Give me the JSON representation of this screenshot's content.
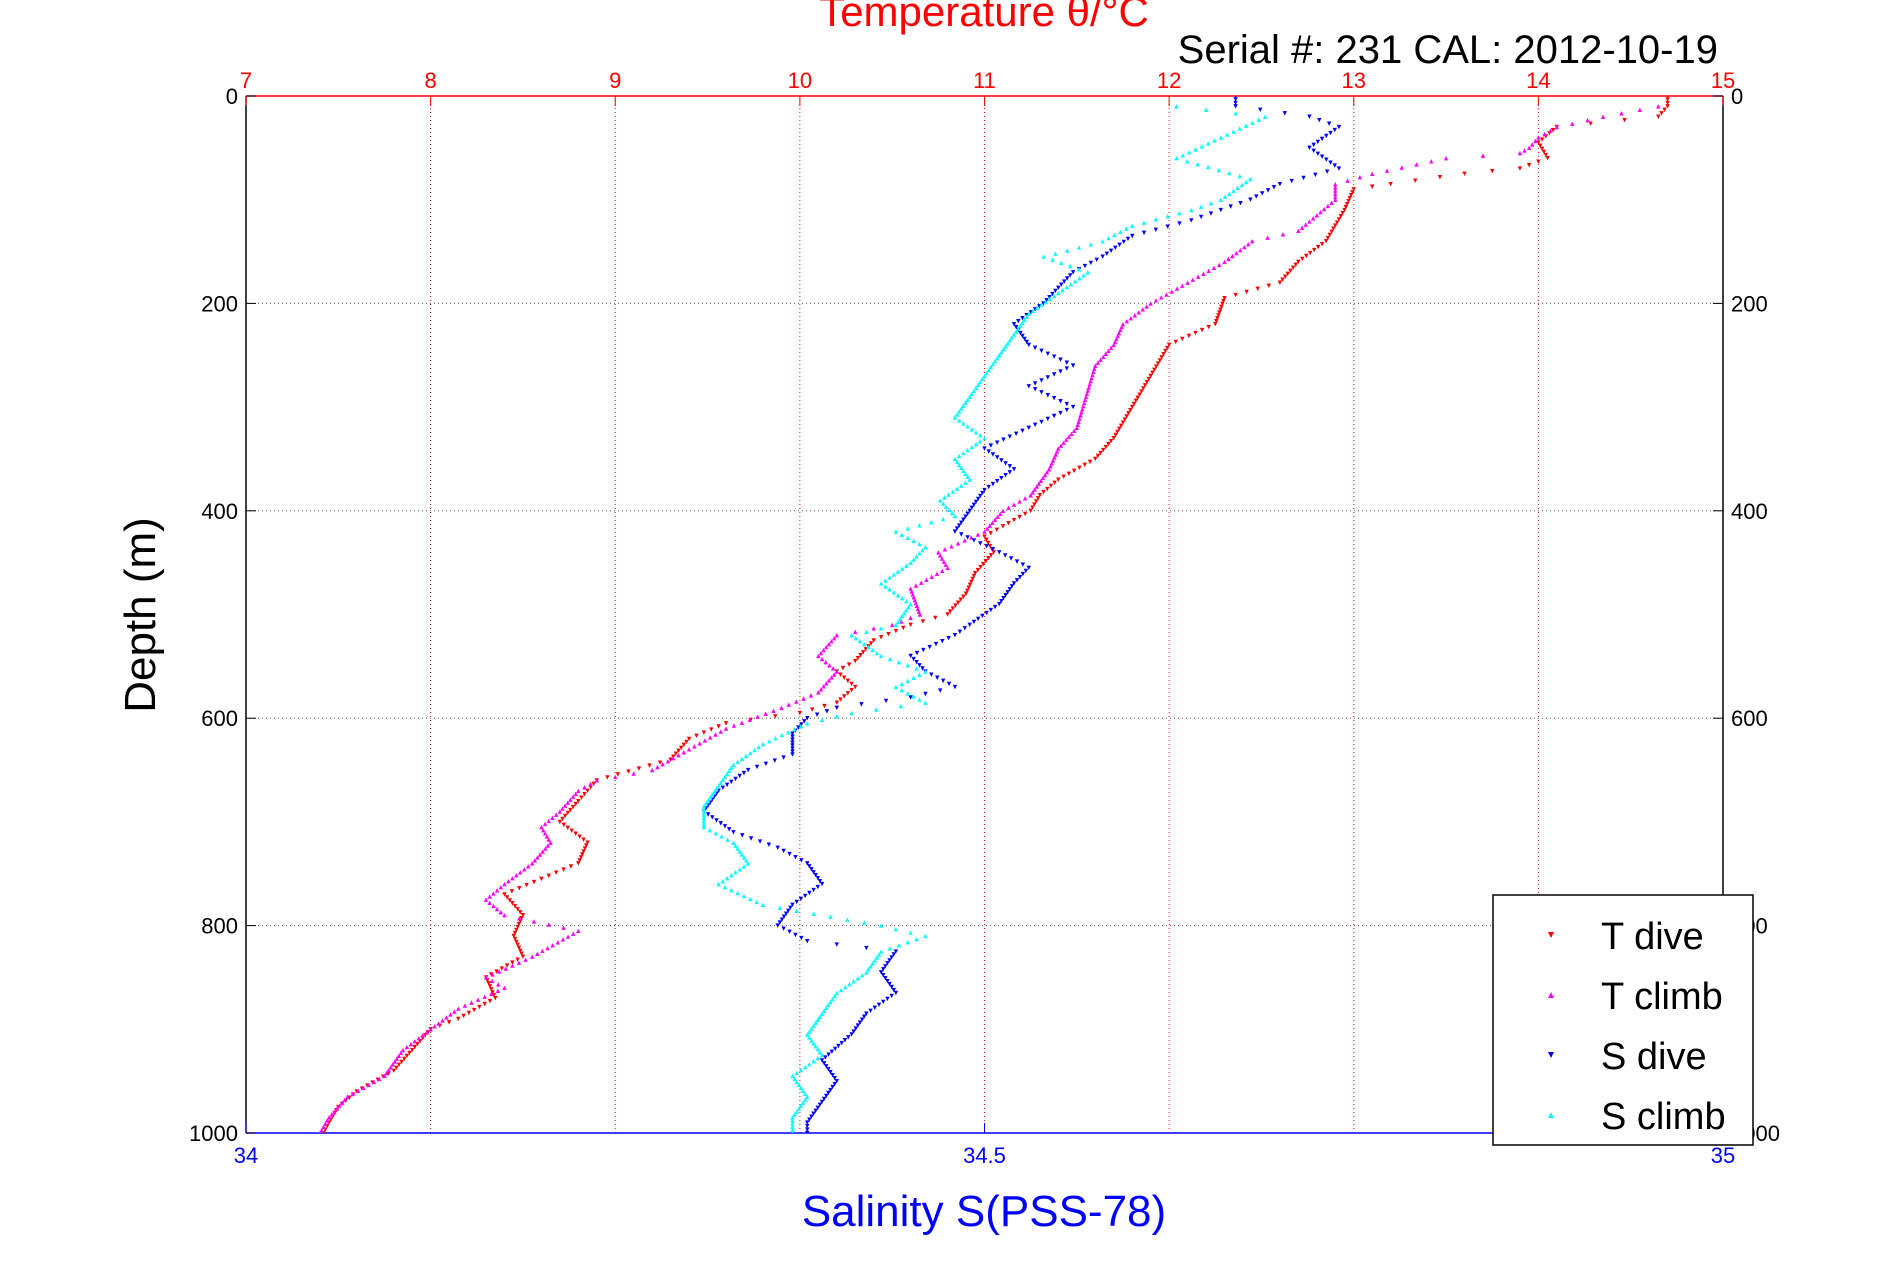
{
  "chart_data": {
    "type": "scatter",
    "title": "Temperature θ/°C",
    "subtitle": "Serial #: 231  CAL: 2012-10-19",
    "ylabel": "Depth (m)",
    "xlabel_bottom": "Salinity S(PSS-78)",
    "xlabel_top": "Temperature θ/°C",
    "ylim": [
      0,
      1000
    ],
    "y_reversed": true,
    "yticks": [
      0,
      200,
      400,
      600,
      800,
      1000
    ],
    "x_top": {
      "min": 7,
      "max": 15,
      "ticks": [
        7,
        8,
        9,
        10,
        11,
        12,
        13,
        14,
        15
      ],
      "color": "#ff0000"
    },
    "x_bottom": {
      "min": 34,
      "max": 35,
      "ticks": [
        34,
        34.5,
        35
      ],
      "color": "#0000ff"
    },
    "grid": true,
    "legend_position": "bottom-right",
    "series": [
      {
        "name": "T dive",
        "axis": "top",
        "marker": "down-triangle",
        "color": "#ff0000",
        "points": [
          [
            14.7,
            0
          ],
          [
            14.7,
            10
          ],
          [
            14.65,
            20
          ],
          [
            14.1,
            30
          ],
          [
            14.0,
            45
          ],
          [
            14.05,
            60
          ],
          [
            13.9,
            70
          ],
          [
            13.6,
            75
          ],
          [
            13.2,
            85
          ],
          [
            13.0,
            90
          ],
          [
            12.95,
            110
          ],
          [
            12.85,
            140
          ],
          [
            12.7,
            160
          ],
          [
            12.6,
            180
          ],
          [
            12.3,
            195
          ],
          [
            12.25,
            220
          ],
          [
            12.0,
            240
          ],
          [
            11.9,
            270
          ],
          [
            11.8,
            300
          ],
          [
            11.7,
            330
          ],
          [
            11.6,
            350
          ],
          [
            11.4,
            370
          ],
          [
            11.3,
            385
          ],
          [
            11.25,
            400
          ],
          [
            11.1,
            415
          ],
          [
            11.0,
            425
          ],
          [
            11.05,
            440
          ],
          [
            10.95,
            460
          ],
          [
            10.9,
            480
          ],
          [
            10.8,
            500
          ],
          [
            10.6,
            510
          ],
          [
            10.4,
            525
          ],
          [
            10.3,
            545
          ],
          [
            10.2,
            555
          ],
          [
            10.3,
            570
          ],
          [
            10.2,
            585
          ],
          [
            10.0,
            595
          ],
          [
            9.6,
            605
          ],
          [
            9.4,
            620
          ],
          [
            9.3,
            640
          ],
          [
            8.9,
            660
          ],
          [
            8.85,
            670
          ],
          [
            8.8,
            680
          ],
          [
            8.7,
            700
          ],
          [
            8.85,
            720
          ],
          [
            8.8,
            740
          ],
          [
            8.6,
            755
          ],
          [
            8.4,
            770
          ],
          [
            8.5,
            790
          ],
          [
            8.45,
            810
          ],
          [
            8.5,
            830
          ],
          [
            8.3,
            850
          ],
          [
            8.35,
            870
          ],
          [
            8.15,
            890
          ],
          [
            8.0,
            900
          ],
          [
            7.9,
            920
          ],
          [
            7.8,
            940
          ],
          [
            7.6,
            960
          ],
          [
            7.5,
            975
          ],
          [
            7.45,
            990
          ],
          [
            7.42,
            1000
          ]
        ]
      },
      {
        "name": "T climb",
        "axis": "top",
        "marker": "up-triangle",
        "color": "#ff00ff",
        "points": [
          [
            14.65,
            10
          ],
          [
            14.35,
            20
          ],
          [
            14.1,
            30
          ],
          [
            14.0,
            40
          ],
          [
            13.95,
            50
          ],
          [
            13.9,
            55
          ],
          [
            13.5,
            60
          ],
          [
            13.1,
            75
          ],
          [
            12.9,
            85
          ],
          [
            12.9,
            100
          ],
          [
            12.8,
            115
          ],
          [
            12.7,
            130
          ],
          [
            12.45,
            140
          ],
          [
            12.3,
            160
          ],
          [
            12.1,
            180
          ],
          [
            11.9,
            200
          ],
          [
            11.75,
            220
          ],
          [
            11.7,
            240
          ],
          [
            11.6,
            260
          ],
          [
            11.55,
            290
          ],
          [
            11.5,
            320
          ],
          [
            11.4,
            340
          ],
          [
            11.35,
            360
          ],
          [
            11.25,
            385
          ],
          [
            11.1,
            400
          ],
          [
            11.0,
            420
          ],
          [
            10.75,
            440
          ],
          [
            10.8,
            455
          ],
          [
            10.6,
            475
          ],
          [
            10.65,
            500
          ],
          [
            10.5,
            510
          ],
          [
            10.2,
            520
          ],
          [
            10.1,
            540
          ],
          [
            10.2,
            555
          ],
          [
            10.1,
            575
          ],
          [
            9.9,
            590
          ],
          [
            9.6,
            610
          ],
          [
            9.4,
            630
          ],
          [
            9.2,
            650
          ],
          [
            8.9,
            660
          ],
          [
            8.8,
            670
          ],
          [
            8.7,
            690
          ],
          [
            8.6,
            705
          ],
          [
            8.65,
            720
          ],
          [
            8.55,
            740
          ],
          [
            8.4,
            760
          ],
          [
            8.3,
            775
          ],
          [
            8.4,
            790
          ],
          [
            8.8,
            805
          ],
          [
            8.55,
            830
          ],
          [
            8.3,
            850
          ],
          [
            8.4,
            860
          ],
          [
            8.15,
            880
          ],
          [
            8.0,
            900
          ],
          [
            7.85,
            920
          ],
          [
            7.75,
            945
          ],
          [
            7.55,
            965
          ],
          [
            7.45,
            985
          ],
          [
            7.4,
            1000
          ]
        ]
      },
      {
        "name": "S dive",
        "axis": "bottom",
        "marker": "down-triangle",
        "color": "#0000ff",
        "points": [
          [
            34.67,
            0
          ],
          [
            34.67,
            10
          ],
          [
            34.72,
            20
          ],
          [
            34.74,
            30
          ],
          [
            34.72,
            50
          ],
          [
            34.74,
            70
          ],
          [
            34.7,
            85
          ],
          [
            34.68,
            100
          ],
          [
            34.66,
            110
          ],
          [
            34.64,
            120
          ],
          [
            34.6,
            135
          ],
          [
            34.58,
            155
          ],
          [
            34.56,
            170
          ],
          [
            34.55,
            185
          ],
          [
            34.54,
            200
          ],
          [
            34.52,
            220
          ],
          [
            34.53,
            240
          ],
          [
            34.56,
            260
          ],
          [
            34.53,
            280
          ],
          [
            34.56,
            300
          ],
          [
            34.53,
            320
          ],
          [
            34.5,
            340
          ],
          [
            34.52,
            360
          ],
          [
            34.5,
            380
          ],
          [
            34.49,
            400
          ],
          [
            34.48,
            420
          ],
          [
            34.51,
            440
          ],
          [
            34.53,
            455
          ],
          [
            34.52,
            470
          ],
          [
            34.51,
            490
          ],
          [
            34.49,
            510
          ],
          [
            34.48,
            520
          ],
          [
            34.45,
            540
          ],
          [
            34.46,
            555
          ],
          [
            34.48,
            570
          ],
          [
            34.45,
            580
          ],
          [
            34.4,
            590
          ],
          [
            34.38,
            600
          ],
          [
            34.37,
            615
          ],
          [
            34.37,
            635
          ],
          [
            34.34,
            650
          ],
          [
            34.32,
            670
          ],
          [
            34.31,
            690
          ],
          [
            34.33,
            710
          ],
          [
            34.36,
            725
          ],
          [
            34.38,
            740
          ],
          [
            34.39,
            760
          ],
          [
            34.37,
            780
          ],
          [
            34.36,
            800
          ],
          [
            34.38,
            815
          ],
          [
            34.44,
            825
          ],
          [
            34.43,
            845
          ],
          [
            34.44,
            865
          ],
          [
            34.42,
            885
          ],
          [
            34.41,
            905
          ],
          [
            34.39,
            930
          ],
          [
            34.4,
            950
          ],
          [
            34.39,
            970
          ],
          [
            34.38,
            990
          ],
          [
            34.38,
            1000
          ]
        ]
      },
      {
        "name": "S climb",
        "axis": "bottom",
        "marker": "up-triangle",
        "color": "#00ffff",
        "points": [
          [
            34.63,
            10
          ],
          [
            34.69,
            20
          ],
          [
            34.66,
            40
          ],
          [
            34.63,
            60
          ],
          [
            34.68,
            80
          ],
          [
            34.66,
            100
          ],
          [
            34.64,
            110
          ],
          [
            34.6,
            125
          ],
          [
            34.58,
            140
          ],
          [
            34.54,
            155
          ],
          [
            34.57,
            170
          ],
          [
            34.55,
            190
          ],
          [
            34.53,
            210
          ],
          [
            34.52,
            230
          ],
          [
            34.51,
            250
          ],
          [
            34.5,
            270
          ],
          [
            34.49,
            290
          ],
          [
            34.48,
            310
          ],
          [
            34.5,
            330
          ],
          [
            34.48,
            350
          ],
          [
            34.49,
            370
          ],
          [
            34.47,
            390
          ],
          [
            34.48,
            405
          ],
          [
            34.44,
            420
          ],
          [
            34.46,
            435
          ],
          [
            34.45,
            450
          ],
          [
            34.43,
            470
          ],
          [
            34.45,
            490
          ],
          [
            34.44,
            510
          ],
          [
            34.41,
            520
          ],
          [
            34.43,
            540
          ],
          [
            34.46,
            555
          ],
          [
            34.44,
            570
          ],
          [
            34.46,
            585
          ],
          [
            34.41,
            595
          ],
          [
            34.38,
            605
          ],
          [
            34.35,
            625
          ],
          [
            34.33,
            645
          ],
          [
            34.32,
            665
          ],
          [
            34.31,
            685
          ],
          [
            34.31,
            705
          ],
          [
            34.33,
            720
          ],
          [
            34.34,
            740
          ],
          [
            34.32,
            760
          ],
          [
            34.35,
            780
          ],
          [
            34.43,
            800
          ],
          [
            34.46,
            810
          ],
          [
            34.43,
            825
          ],
          [
            34.42,
            845
          ],
          [
            34.4,
            865
          ],
          [
            34.39,
            885
          ],
          [
            34.38,
            905
          ],
          [
            34.39,
            925
          ],
          [
            34.37,
            945
          ],
          [
            34.38,
            965
          ],
          [
            34.37,
            985
          ],
          [
            34.37,
            1000
          ]
        ]
      }
    ]
  }
}
